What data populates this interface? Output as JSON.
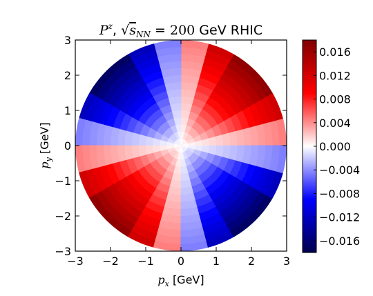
{
  "chart_data": {
    "type": "heatmap",
    "title": "P^z, √s_NN = 200 GeV RHIC",
    "title_parts": {
      "symbol": "P",
      "superscript": "z",
      "sqrt_label": "s",
      "sqrt_sub": "NN",
      "equals_value": "= 200",
      "suffix": "GeV RHIC"
    },
    "xlabel": {
      "symbol": "p",
      "sub": "x",
      "unit": "[GeV]"
    },
    "ylabel": {
      "symbol": "p",
      "sub": "y",
      "unit": "[GeV]"
    },
    "xlim": [
      -3,
      3
    ],
    "ylim": [
      -3,
      3
    ],
    "xticks": [
      -3,
      -2,
      -1,
      0,
      1,
      2,
      3
    ],
    "yticks": [
      -3,
      -2,
      -1,
      0,
      1,
      2,
      3
    ],
    "xtick_labels": [
      "−3",
      "−2",
      "−1",
      "0",
      "1",
      "2",
      "3"
    ],
    "ytick_labels": [
      "−3",
      "−2",
      "−1",
      "0",
      "1",
      "2",
      "3"
    ],
    "domain": {
      "shape": "disk",
      "radius_max": 3.0
    },
    "pattern": {
      "form": "P0 * (pT / pTmax) * sin(2*phi)",
      "amplitude": 0.018
    },
    "colorbar": {
      "vmin": -0.018,
      "vmax": 0.018,
      "colormap": "seismic",
      "ticks": [
        0.016,
        0.012,
        0.008,
        0.004,
        0.0,
        -0.004,
        -0.008,
        -0.012,
        -0.016
      ],
      "tick_labels": [
        "0.016",
        "0.012",
        "0.008",
        "0.004",
        "0.000",
        "−0.004",
        "−0.008",
        "−0.012",
        "−0.016"
      ]
    },
    "colors": {
      "negative_end": "#00004c",
      "mid_blue": "#0000ff",
      "zero": "#ffffff",
      "mid_red": "#ff0000",
      "positive_end": "#800000"
    },
    "grid": false
  }
}
